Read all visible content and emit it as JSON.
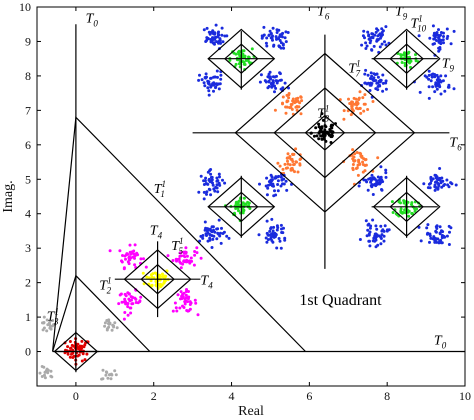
{
  "chart_data": {
    "type": "scatter",
    "title": "",
    "xlabel": "Real",
    "ylabel": "Imag.",
    "xlim": [
      -1,
      10
    ],
    "ylim": [
      -1,
      10
    ],
    "xticks": [
      "0",
      "2",
      "4",
      "6",
      "8",
      "10"
    ],
    "yticks": [
      "0",
      "1",
      "2",
      "3",
      "4",
      "5",
      "6",
      "7",
      "8",
      "9",
      "10"
    ],
    "grid": false,
    "quadrant_label": "1st Quadrant",
    "lines": [
      {
        "name": "T0-vertical",
        "x": [
          0,
          0
        ],
        "y": [
          -0.5,
          9.5
        ]
      },
      {
        "name": "T0-horizontal",
        "x": [
          -0.5,
          10
        ],
        "y": [
          0,
          0
        ]
      },
      {
        "name": "T1-1-boundary",
        "x": [
          -0.6,
          0,
          5.9
        ],
        "y": [
          0,
          6.8,
          0
        ]
      },
      {
        "name": "T2-1-boundary",
        "x": [
          -0.6,
          0,
          1.9
        ],
        "y": [
          0,
          2.2,
          0
        ]
      },
      {
        "name": "T6-vertical",
        "x": [
          6.4,
          6.4
        ],
        "y": [
          2.4,
          9.2
        ]
      },
      {
        "name": "T6-horizontal",
        "x": [
          3.0,
          9.6
        ],
        "y": [
          6.35,
          6.35
        ]
      },
      {
        "name": "T4-vertical",
        "x": [
          2.1,
          2.1
        ],
        "y": [
          1.0,
          3.2
        ]
      },
      {
        "name": "T4-horizontal",
        "x": [
          1.0,
          3.2
        ],
        "y": [
          2.1,
          2.1
        ]
      },
      {
        "name": "T9-vertical",
        "x": [
          8.5,
          8.5
        ],
        "y": [
          7.6,
          9.3
        ]
      },
      {
        "name": "T9-horizontal",
        "x": [
          7.6,
          9.3
        ],
        "y": [
          8.5,
          8.5
        ]
      },
      {
        "name": "cross-upper-left-vertical",
        "x": [
          4.25,
          4.25
        ],
        "y": [
          7.6,
          9.3
        ]
      },
      {
        "name": "cross-upper-left-horizontal",
        "x": [
          3.4,
          5.1
        ],
        "y": [
          8.5,
          8.5
        ]
      },
      {
        "name": "cross-left-vertical",
        "x": [
          4.25,
          4.25
        ],
        "y": [
          3.3,
          5.1
        ]
      },
      {
        "name": "cross-left-horizontal",
        "x": [
          3.4,
          5.1
        ],
        "y": [
          4.2,
          4.2
        ]
      },
      {
        "name": "cross-right-vertical",
        "x": [
          8.5,
          8.5
        ],
        "y": [
          3.3,
          5.1
        ]
      },
      {
        "name": "cross-right-horizontal",
        "x": [
          7.6,
          9.3
        ],
        "y": [
          4.2,
          4.2
        ]
      },
      {
        "name": "T3-cross-vertical",
        "x": [
          0,
          0
        ],
        "y": [
          -0.6,
          0.6
        ]
      },
      {
        "name": "T3-cross-horizontal",
        "x": [
          -0.6,
          0.6
        ],
        "y": [
          0,
          0
        ]
      }
    ],
    "diamonds": [
      {
        "name": "T6-outer",
        "center": [
          6.4,
          6.35
        ],
        "radius": 2.3
      },
      {
        "name": "T7-1",
        "center": [
          6.4,
          6.35
        ],
        "radius": 1.3
      },
      {
        "name": "T8-1",
        "center": [
          6.4,
          6.35
        ],
        "radius": 0.5
      },
      {
        "name": "T4",
        "center": [
          2.1,
          2.1
        ],
        "radius": 0.85
      },
      {
        "name": "T5-1",
        "center": [
          2.1,
          2.1
        ],
        "radius": 0.42
      },
      {
        "name": "T9",
        "center": [
          8.5,
          8.5
        ],
        "radius": 0.85
      },
      {
        "name": "T10-1",
        "center": [
          8.5,
          8.5
        ],
        "radius": 0.42
      },
      {
        "name": "diamond-upper-left-outer",
        "center": [
          4.25,
          8.5
        ],
        "radius": 0.85
      },
      {
        "name": "diamond-upper-left-inner",
        "center": [
          4.25,
          8.5
        ],
        "radius": 0.42
      },
      {
        "name": "diamond-left-outer",
        "center": [
          4.25,
          4.2
        ],
        "radius": 0.85
      },
      {
        "name": "diamond-left-inner",
        "center": [
          4.25,
          4.2
        ],
        "radius": 0.42
      },
      {
        "name": "diamond-right-outer",
        "center": [
          8.5,
          4.2
        ],
        "radius": 0.85
      },
      {
        "name": "diamond-right-inner",
        "center": [
          8.5,
          4.2
        ],
        "radius": 0.42
      },
      {
        "name": "T3-diamond",
        "center": [
          0,
          0
        ],
        "radius": 0.55
      }
    ],
    "clusters": [
      {
        "color": "#e00000",
        "x": 0.05,
        "y": 0.05,
        "spread": 0.16,
        "n": 55
      },
      {
        "color": "#aaaaaa",
        "x": -0.75,
        "y": 0.75,
        "spread": 0.1,
        "n": 18
      },
      {
        "color": "#aaaaaa",
        "x": 0.85,
        "y": 0.75,
        "spread": 0.1,
        "n": 18
      },
      {
        "color": "#aaaaaa",
        "x": -0.75,
        "y": -0.65,
        "spread": 0.1,
        "n": 14
      },
      {
        "color": "#aaaaaa",
        "x": 0.85,
        "y": -0.65,
        "spread": 0.1,
        "n": 14
      },
      {
        "color": "#ffff00",
        "x": 2.1,
        "y": 2.1,
        "spread": 0.16,
        "n": 55
      },
      {
        "color": "#ff00ff",
        "x": 1.4,
        "y": 2.75,
        "spread": 0.15,
        "n": 40
      },
      {
        "color": "#ff00ff",
        "x": 2.8,
        "y": 2.75,
        "spread": 0.15,
        "n": 40
      },
      {
        "color": "#ff00ff",
        "x": 1.4,
        "y": 1.45,
        "spread": 0.15,
        "n": 40
      },
      {
        "color": "#ff00ff",
        "x": 2.8,
        "y": 1.45,
        "spread": 0.15,
        "n": 40
      },
      {
        "color": "#000000",
        "x": 6.4,
        "y": 6.35,
        "spread": 0.17,
        "n": 60
      },
      {
        "color": "#ff7733",
        "x": 5.55,
        "y": 7.15,
        "spread": 0.16,
        "n": 40
      },
      {
        "color": "#ff7733",
        "x": 7.25,
        "y": 7.15,
        "spread": 0.16,
        "n": 40
      },
      {
        "color": "#ff7733",
        "x": 5.55,
        "y": 5.5,
        "spread": 0.16,
        "n": 40
      },
      {
        "color": "#ff7733",
        "x": 7.25,
        "y": 5.5,
        "spread": 0.16,
        "n": 40
      },
      {
        "color": "#22dd22",
        "x": 4.25,
        "y": 8.5,
        "spread": 0.14,
        "n": 45
      },
      {
        "color": "#22dd22",
        "x": 8.5,
        "y": 8.5,
        "spread": 0.14,
        "n": 45
      },
      {
        "color": "#22dd22",
        "x": 4.25,
        "y": 4.2,
        "spread": 0.14,
        "n": 45
      },
      {
        "color": "#22dd22",
        "x": 8.5,
        "y": 4.2,
        "spread": 0.14,
        "n": 45
      },
      {
        "color": "#1a2bdd",
        "x": 3.5,
        "y": 9.1,
        "spread": 0.16,
        "n": 45
      },
      {
        "color": "#1a2bdd",
        "x": 5.1,
        "y": 9.1,
        "spread": 0.16,
        "n": 45
      },
      {
        "color": "#1a2bdd",
        "x": 3.5,
        "y": 7.8,
        "spread": 0.16,
        "n": 45
      },
      {
        "color": "#1a2bdd",
        "x": 5.1,
        "y": 7.8,
        "spread": 0.16,
        "n": 45
      },
      {
        "color": "#1a2bdd",
        "x": 7.7,
        "y": 9.1,
        "spread": 0.16,
        "n": 45
      },
      {
        "color": "#1a2bdd",
        "x": 9.3,
        "y": 9.1,
        "spread": 0.16,
        "n": 45
      },
      {
        "color": "#1a2bdd",
        "x": 7.7,
        "y": 7.8,
        "spread": 0.16,
        "n": 45
      },
      {
        "color": "#1a2bdd",
        "x": 9.3,
        "y": 7.8,
        "spread": 0.16,
        "n": 45
      },
      {
        "color": "#1a2bdd",
        "x": 3.5,
        "y": 4.9,
        "spread": 0.16,
        "n": 45
      },
      {
        "color": "#1a2bdd",
        "x": 5.1,
        "y": 4.9,
        "spread": 0.16,
        "n": 45
      },
      {
        "color": "#1a2bdd",
        "x": 3.5,
        "y": 3.4,
        "spread": 0.16,
        "n": 45
      },
      {
        "color": "#1a2bdd",
        "x": 5.1,
        "y": 3.4,
        "spread": 0.16,
        "n": 45
      },
      {
        "color": "#1a2bdd",
        "x": 7.7,
        "y": 4.9,
        "spread": 0.16,
        "n": 45
      },
      {
        "color": "#1a2bdd",
        "x": 9.3,
        "y": 4.9,
        "spread": 0.16,
        "n": 45
      },
      {
        "color": "#1a2bdd",
        "x": 7.7,
        "y": 3.4,
        "spread": 0.16,
        "n": 45
      },
      {
        "color": "#1a2bdd",
        "x": 9.3,
        "y": 3.4,
        "spread": 0.16,
        "n": 45
      }
    ],
    "annotations": [
      {
        "base": "T",
        "sub": "0",
        "sup": "",
        "x": 0.25,
        "y": 9.55
      },
      {
        "base": "T",
        "sub": "0",
        "sup": "",
        "x": 9.2,
        "y": 0.2
      },
      {
        "base": "T",
        "sub": "1",
        "sup": "1",
        "x": 2.0,
        "y": 4.6
      },
      {
        "base": "T",
        "sub": "2",
        "sup": "1",
        "x": 0.6,
        "y": 1.8
      },
      {
        "base": "T",
        "sub": "3",
        "sup": "1",
        "x": -0.75,
        "y": 0.9
      },
      {
        "base": "T",
        "sub": "4",
        "sup": "",
        "x": 1.9,
        "y": 3.4
      },
      {
        "base": "T",
        "sub": "5",
        "sup": "1",
        "x": 2.45,
        "y": 2.95
      },
      {
        "base": "T",
        "sub": "4",
        "sup": "",
        "x": 3.2,
        "y": 1.95
      },
      {
        "base": "T",
        "sub": "6",
        "sup": "",
        "x": 6.2,
        "y": 9.75
      },
      {
        "base": "T",
        "sub": "6",
        "sup": "",
        "x": 9.6,
        "y": 5.95
      },
      {
        "base": "T",
        "sub": "7",
        "sup": "1",
        "x": 7.0,
        "y": 8.1
      },
      {
        "base": "T",
        "sub": "8",
        "sup": "1",
        "x": 6.2,
        "y": 6.8
      },
      {
        "base": "T",
        "sub": "9",
        "sup": "",
        "x": 8.2,
        "y": 9.75
      },
      {
        "base": "T",
        "sub": "10",
        "sup": "1",
        "x": 8.6,
        "y": 9.4
      },
      {
        "base": "T",
        "sub": "9",
        "sup": "",
        "x": 9.4,
        "y": 8.25
      }
    ]
  }
}
